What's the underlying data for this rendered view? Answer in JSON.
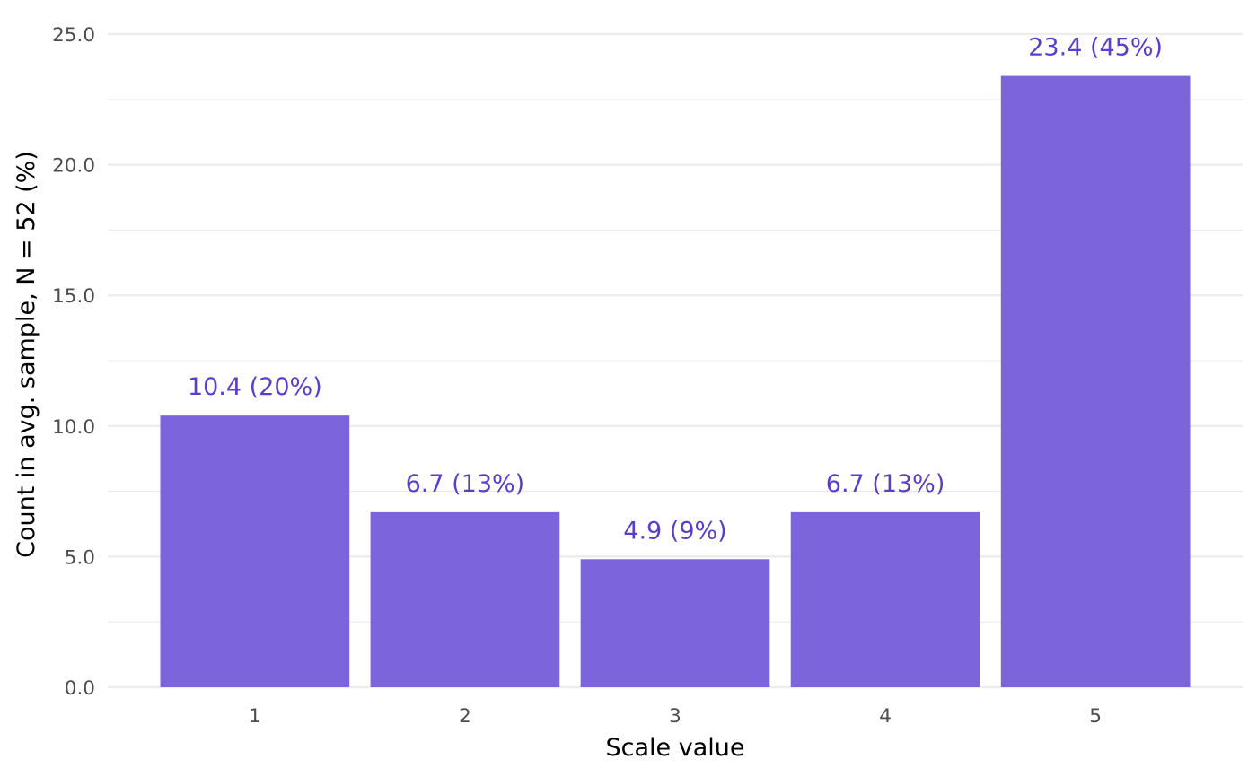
{
  "chart_data": {
    "type": "bar",
    "title": "",
    "xlabel": "Scale value",
    "ylabel": "Count in avg. sample, N = 52 (%)",
    "categories": [
      "1",
      "2",
      "3",
      "4",
      "5"
    ],
    "values": [
      10.4,
      6.7,
      4.9,
      6.7,
      23.4
    ],
    "data_labels": [
      "10.4 (20%)",
      "6.7 (13%)",
      "4.9 (9%)",
      "6.7 (13%)",
      "23.4 (45%)"
    ],
    "ylim": [
      0,
      25
    ],
    "y_ticks": [
      0,
      5,
      10,
      15,
      20,
      25
    ],
    "y_tick_labels": [
      "0.0",
      "5.0",
      "10.0",
      "15.0",
      "20.0",
      "25.0"
    ],
    "grid": true,
    "legend": "none",
    "colors": {
      "bar_fill": "#7b64dc",
      "label_text": "#5a3ec8"
    }
  }
}
